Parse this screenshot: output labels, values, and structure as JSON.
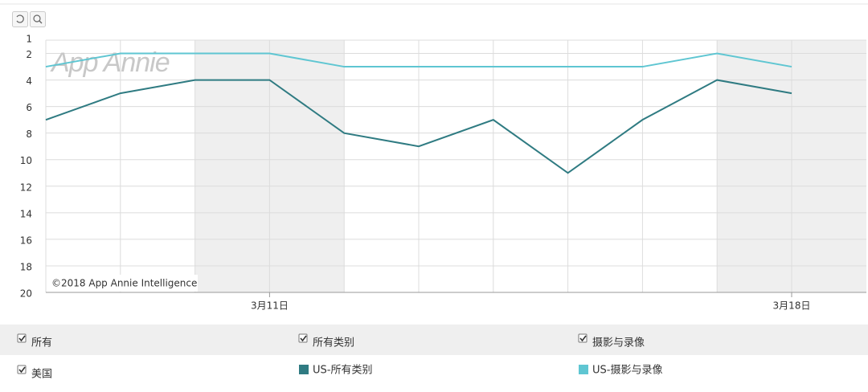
{
  "chart_data": {
    "type": "line",
    "watermark": "App Annie",
    "copyright": "©2018 App Annie Intelligence",
    "categories": [
      null,
      null,
      null,
      "3月11日",
      null,
      null,
      null,
      null,
      null,
      null,
      "3月18日"
    ],
    "series": [
      {
        "name": "US-所有类别",
        "color": "#2f7b82",
        "values": [
          7,
          5,
          4,
          4,
          8,
          9,
          7,
          11,
          7,
          4,
          5
        ]
      },
      {
        "name": "US-摄影与录像",
        "color": "#5fc6d2",
        "values": [
          3,
          2,
          2,
          2,
          3,
          3,
          3,
          3,
          3,
          2,
          3
        ]
      }
    ],
    "ylim": [
      1,
      20
    ],
    "y_inverted": true,
    "yticks": [
      1,
      2,
      4,
      6,
      8,
      10,
      12,
      14,
      16,
      18,
      20
    ],
    "grid": true
  },
  "filters": [
    "所有",
    "所有类别",
    "摄影与录像",
    "美国"
  ]
}
